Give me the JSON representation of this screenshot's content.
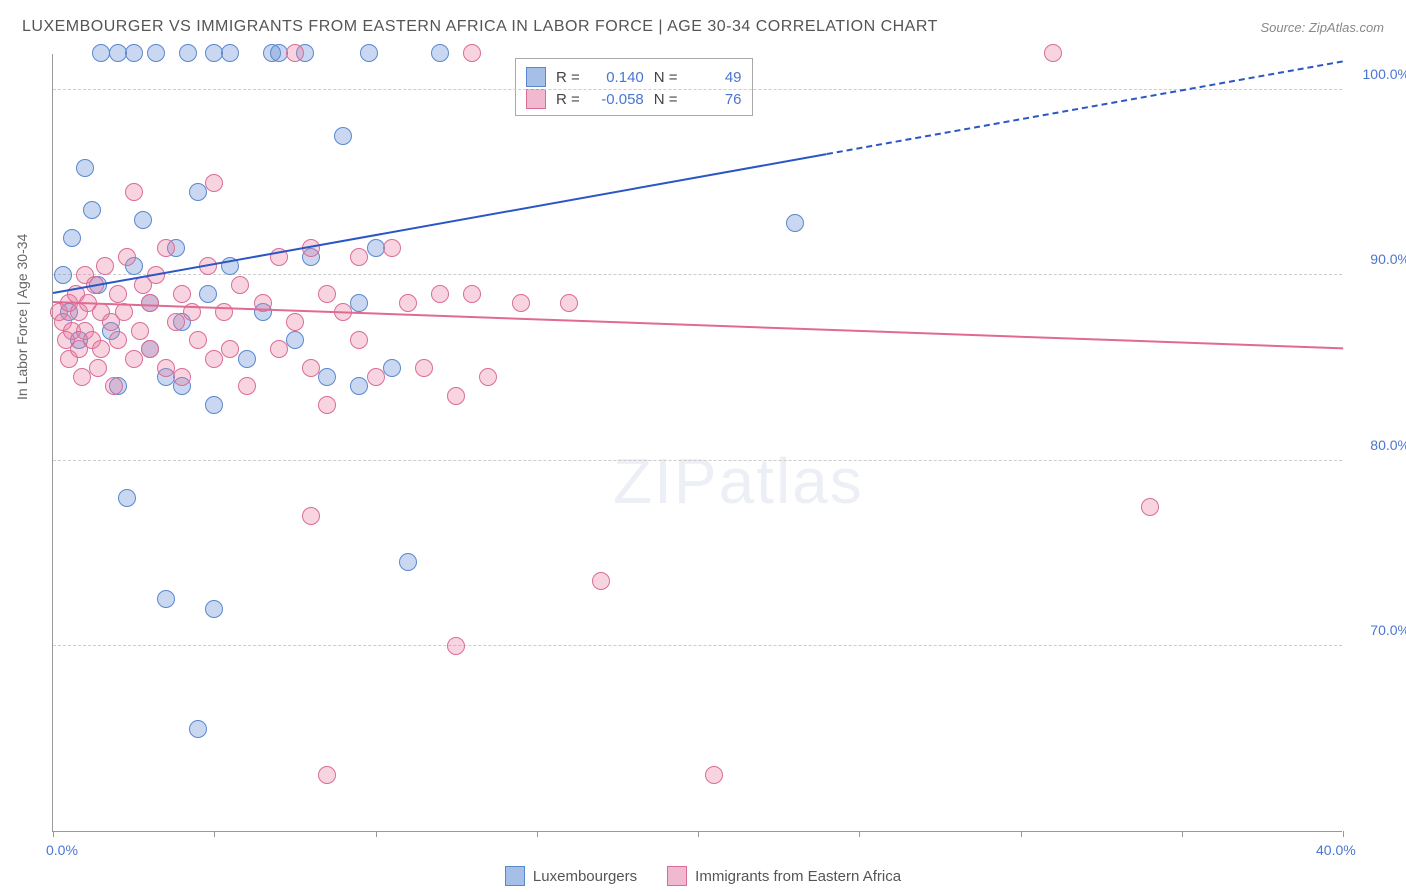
{
  "title": "LUXEMBOURGER VS IMMIGRANTS FROM EASTERN AFRICA IN LABOR FORCE | AGE 30-34 CORRELATION CHART",
  "source": "Source: ZipAtlas.com",
  "ylabel": "In Labor Force | Age 30-34",
  "watermark": {
    "bold": "ZIP",
    "light": "atlas"
  },
  "chart": {
    "type": "scatter-correlation",
    "background_color": "#ffffff",
    "grid_color": "#cccccc",
    "axis_color": "#999999",
    "label_color": "#4a76d0",
    "xlim": [
      0,
      40
    ],
    "ylim": [
      60,
      102
    ],
    "xtick_positions": [
      0,
      5,
      10,
      15,
      20,
      25,
      30,
      35,
      40
    ],
    "xtick_labels": {
      "0": "0.0%",
      "40": "40.0%"
    },
    "ytick_positions": [
      70,
      80,
      90,
      100
    ],
    "ytick_labels": {
      "70": "70.0%",
      "80": "80.0%",
      "90": "90.0%",
      "100": "100.0%"
    },
    "series": [
      {
        "id": "luxembourgers",
        "label": "Luxembourgers",
        "fill": "rgba(99,141,213,0.35)",
        "stroke": "#5a88cf",
        "swatch_fill": "#a6bfe6",
        "swatch_stroke": "#5a88cf",
        "trend_color": "#2a56c6",
        "R": "0.140",
        "N": "49",
        "trend": {
          "x1": 0,
          "y1": 89.0,
          "x2": 24,
          "y2": 96.5,
          "x2_dash": 40,
          "y2_dash": 101.5
        },
        "marker_radius": 9,
        "points": [
          [
            0.3,
            90.0
          ],
          [
            0.5,
            88.0
          ],
          [
            0.6,
            92.0
          ],
          [
            0.8,
            86.5
          ],
          [
            1.0,
            95.8
          ],
          [
            1.2,
            93.5
          ],
          [
            1.4,
            89.5
          ],
          [
            1.5,
            102.0
          ],
          [
            1.8,
            87.0
          ],
          [
            2.0,
            84.0
          ],
          [
            2.0,
            102.0
          ],
          [
            2.3,
            78.0
          ],
          [
            2.5,
            90.5
          ],
          [
            2.5,
            102.0
          ],
          [
            2.8,
            93.0
          ],
          [
            3.0,
            86.0
          ],
          [
            3.0,
            88.5
          ],
          [
            3.2,
            102.0
          ],
          [
            3.5,
            84.5
          ],
          [
            3.8,
            91.5
          ],
          [
            4.0,
            87.5
          ],
          [
            4.0,
            84.0
          ],
          [
            4.2,
            102.0
          ],
          [
            4.5,
            94.5
          ],
          [
            4.8,
            89.0
          ],
          [
            5.0,
            83.0
          ],
          [
            5.0,
            102.0
          ],
          [
            5.5,
            90.5
          ],
          [
            5.5,
            102.0
          ],
          [
            6.0,
            85.5
          ],
          [
            6.5,
            88.0
          ],
          [
            6.8,
            102.0
          ],
          [
            7.0,
            102.0
          ],
          [
            7.5,
            86.5
          ],
          [
            7.8,
            102.0
          ],
          [
            8.0,
            91.0
          ],
          [
            8.5,
            84.5
          ],
          [
            9.0,
            97.5
          ],
          [
            9.5,
            88.5
          ],
          [
            9.5,
            84.0
          ],
          [
            9.8,
            102.0
          ],
          [
            10.0,
            91.5
          ],
          [
            10.5,
            85.0
          ],
          [
            11.0,
            74.5
          ],
          [
            12.0,
            102.0
          ],
          [
            5.0,
            72.0
          ],
          [
            4.5,
            65.5
          ],
          [
            23.0,
            92.8
          ],
          [
            3.5,
            72.5
          ]
        ]
      },
      {
        "id": "eafrica",
        "label": "Immigrants from Eastern Africa",
        "fill": "rgba(232,120,160,0.32)",
        "stroke": "#d96d98",
        "swatch_fill": "#f1b9cf",
        "swatch_stroke": "#d96d98",
        "trend_color": "#e06a92",
        "R": "-0.058",
        "N": "76",
        "trend": {
          "x1": 0,
          "y1": 88.5,
          "x2": 40,
          "y2": 86.0
        },
        "marker_radius": 9,
        "points": [
          [
            0.2,
            88.0
          ],
          [
            0.3,
            87.5
          ],
          [
            0.4,
            86.5
          ],
          [
            0.5,
            88.5
          ],
          [
            0.5,
            85.5
          ],
          [
            0.6,
            87.0
          ],
          [
            0.7,
            89.0
          ],
          [
            0.8,
            86.0
          ],
          [
            0.8,
            88.0
          ],
          [
            0.9,
            84.5
          ],
          [
            1.0,
            90.0
          ],
          [
            1.0,
            87.0
          ],
          [
            1.1,
            88.5
          ],
          [
            1.2,
            86.5
          ],
          [
            1.3,
            89.5
          ],
          [
            1.4,
            85.0
          ],
          [
            1.5,
            88.0
          ],
          [
            1.5,
            86.0
          ],
          [
            1.6,
            90.5
          ],
          [
            1.8,
            87.5
          ],
          [
            1.9,
            84.0
          ],
          [
            2.0,
            89.0
          ],
          [
            2.0,
            86.5
          ],
          [
            2.2,
            88.0
          ],
          [
            2.3,
            91.0
          ],
          [
            2.5,
            85.5
          ],
          [
            2.5,
            94.5
          ],
          [
            2.7,
            87.0
          ],
          [
            2.8,
            89.5
          ],
          [
            3.0,
            86.0
          ],
          [
            3.0,
            88.5
          ],
          [
            3.2,
            90.0
          ],
          [
            3.5,
            85.0
          ],
          [
            3.5,
            91.5
          ],
          [
            3.8,
            87.5
          ],
          [
            4.0,
            89.0
          ],
          [
            4.0,
            84.5
          ],
          [
            4.3,
            88.0
          ],
          [
            4.5,
            86.5
          ],
          [
            4.8,
            90.5
          ],
          [
            5.0,
            85.5
          ],
          [
            5.0,
            95.0
          ],
          [
            5.3,
            88.0
          ],
          [
            5.5,
            86.0
          ],
          [
            5.8,
            89.5
          ],
          [
            6.0,
            84.0
          ],
          [
            6.5,
            88.5
          ],
          [
            7.0,
            86.0
          ],
          [
            7.0,
            91.0
          ],
          [
            7.5,
            102.0
          ],
          [
            7.5,
            87.5
          ],
          [
            8.0,
            85.0
          ],
          [
            8.0,
            91.5
          ],
          [
            8.5,
            89.0
          ],
          [
            8.5,
            83.0
          ],
          [
            9.0,
            88.0
          ],
          [
            9.5,
            91.0
          ],
          [
            9.5,
            86.5
          ],
          [
            10.0,
            84.5
          ],
          [
            10.5,
            91.5
          ],
          [
            11.0,
            88.5
          ],
          [
            11.5,
            85.0
          ],
          [
            12.0,
            89.0
          ],
          [
            12.5,
            83.5
          ],
          [
            13.0,
            89.0
          ],
          [
            13.5,
            84.5
          ],
          [
            14.5,
            88.5
          ],
          [
            16.0,
            88.5
          ],
          [
            17.0,
            73.5
          ],
          [
            12.5,
            70.0
          ],
          [
            8.0,
            77.0
          ],
          [
            8.5,
            63.0
          ],
          [
            20.5,
            63.0
          ],
          [
            13.0,
            102.0
          ],
          [
            31.0,
            102.0
          ],
          [
            34.0,
            77.5
          ]
        ]
      }
    ],
    "correlation_legend": {
      "R_label": "R =",
      "N_label": "N ="
    },
    "bottom_legend": [
      {
        "series": "luxembourgers"
      },
      {
        "series": "eafrica"
      }
    ]
  }
}
